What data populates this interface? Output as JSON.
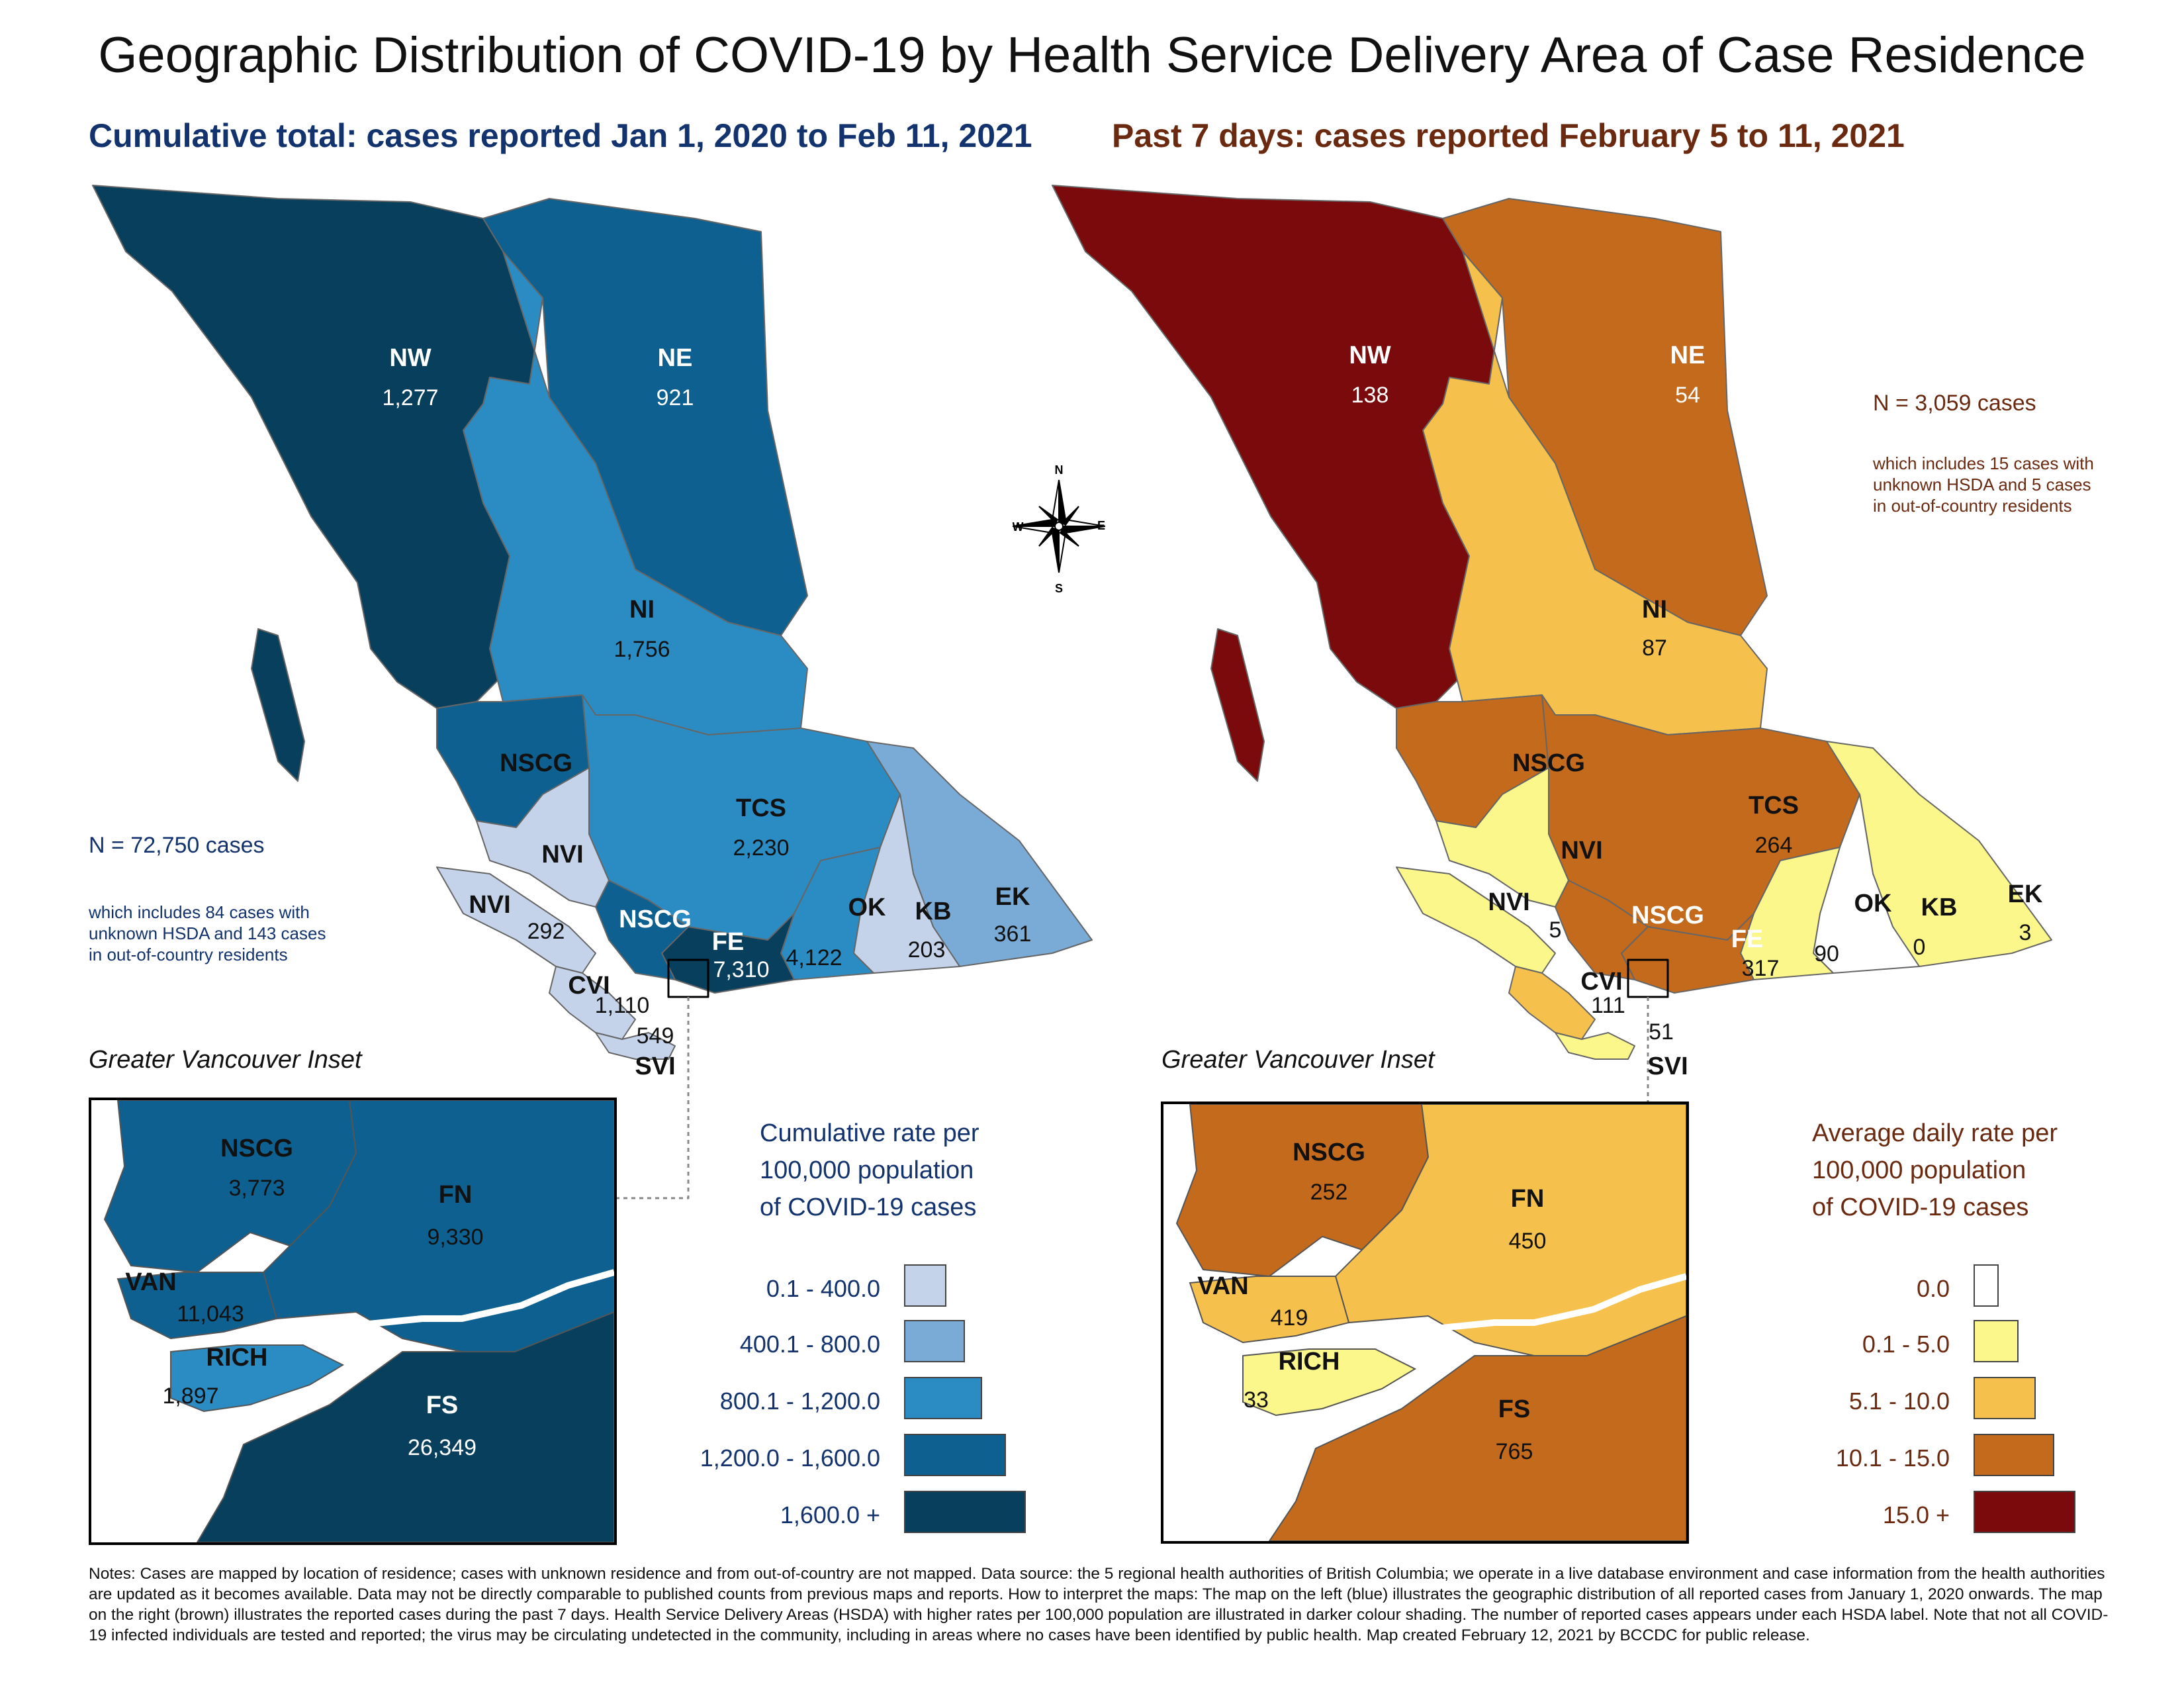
{
  "title": "Geographic Distribution of COVID-19 by Health Service Delivery Area of Case Residence",
  "left": {
    "subtitle": "Cumulative total: cases reported Jan 1, 2020 to Feb 11, 2021",
    "n_cases": "N = 72,750 cases",
    "note_lines": [
      "which includes 84 cases with",
      "unknown HSDA and 143 cases",
      "in out-of-country residents"
    ],
    "regions": {
      "NW": {
        "label": "NW",
        "value": "1,277"
      },
      "NE": {
        "label": "NE",
        "value": "921"
      },
      "NI": {
        "label": "NI",
        "value": "1,756"
      },
      "NSCG": {
        "label": "NSCG"
      },
      "TCS": {
        "label": "TCS",
        "value": "2,230"
      },
      "NVI": {
        "label": "NVI"
      },
      "NVI2": {
        "label": "NVI",
        "value": "292"
      },
      "NSCG2": {
        "label": "NSCG"
      },
      "FE": {
        "label": "FE",
        "value": "7,310"
      },
      "OK": {
        "label": "OK",
        "value": "4,122"
      },
      "KB": {
        "label": "KB",
        "value": "203"
      },
      "EK": {
        "label": "EK",
        "value": "361"
      },
      "CVI": {
        "label": "CVI",
        "value": "1,110"
      },
      "SVI": {
        "label": "SVI",
        "value": "549"
      }
    },
    "inset": {
      "title": "Greater Vancouver Inset",
      "NSCG": {
        "label": "NSCG",
        "value": "3,773"
      },
      "FN": {
        "label": "FN",
        "value": "9,330"
      },
      "VAN": {
        "label": "VAN",
        "value": "11,043"
      },
      "RICH": {
        "label": "RICH",
        "value": "1,897"
      },
      "FS": {
        "label": "FS",
        "value": "26,349"
      }
    },
    "legend": {
      "title_lines": [
        "Cumulative rate per",
        "100,000 population",
        "of COVID-19 cases"
      ],
      "items": [
        {
          "label": "0.1 - 400.0",
          "color": "#c5d3ea"
        },
        {
          "label": "400.1 - 800.0",
          "color": "#7aaad6"
        },
        {
          "label": "800.1 - 1,200.0",
          "color": "#2b8cc4"
        },
        {
          "label": "1,200.0 - 1,600.0",
          "color": "#0d6090"
        },
        {
          "label": "1,600.0 +",
          "color": "#083f5c"
        }
      ]
    }
  },
  "right": {
    "subtitle": "Past 7 days: cases reported February 5 to 11, 2021",
    "n_cases": "N = 3,059 cases",
    "note_lines": [
      "which includes 15 cases with",
      "unknown HSDA and 5 cases",
      "in out-of-country residents"
    ],
    "regions": {
      "NW": {
        "label": "NW",
        "value": "138"
      },
      "NE": {
        "label": "NE",
        "value": "54"
      },
      "NI": {
        "label": "NI",
        "value": "87"
      },
      "NSCG": {
        "label": "NSCG"
      },
      "TCS": {
        "label": "TCS",
        "value": "264"
      },
      "NVI": {
        "label": "NVI"
      },
      "NVI2": {
        "label": "NVI",
        "value": "5"
      },
      "NSCG2": {
        "label": "NSCG"
      },
      "FE": {
        "label": "FE",
        "value": "317"
      },
      "OK": {
        "label": "OK",
        "value": "90"
      },
      "KB": {
        "label": "KB",
        "value": "0"
      },
      "EK": {
        "label": "EK",
        "value": "3"
      },
      "CVI": {
        "label": "CVI",
        "value": "111"
      },
      "SVI": {
        "label": "SVI",
        "value": "51"
      }
    },
    "inset": {
      "title": "Greater Vancouver Inset",
      "NSCG": {
        "label": "NSCG",
        "value": "252"
      },
      "FN": {
        "label": "FN",
        "value": "450"
      },
      "VAN": {
        "label": "VAN",
        "value": "419"
      },
      "RICH": {
        "label": "RICH",
        "value": "33"
      },
      "FS": {
        "label": "FS",
        "value": "765"
      }
    },
    "legend": {
      "title_lines": [
        "Average daily rate per",
        "100,000 population",
        "of COVID-19 cases"
      ],
      "items": [
        {
          "label": "0.0",
          "color": "#ffffff"
        },
        {
          "label": "0.1 - 5.0",
          "color": "#fbf78a"
        },
        {
          "label": "5.1 - 10.0",
          "color": "#f5c04c"
        },
        {
          "label": "10.1 - 15.0",
          "color": "#c46a1c"
        },
        {
          "label": "15.0 +",
          "color": "#7a0a0c"
        }
      ]
    }
  },
  "compass": {
    "n": "N",
    "s": "S",
    "e": "E",
    "w": "W"
  },
  "notes": "Notes: Cases are mapped by location of residence; cases with unknown residence and from out-of-country are not mapped. Data source: the 5 regional health authorities of British Columbia; we operate in a live database environment and case information from the health authorities are updated as it becomes available. Data may not be directly comparable to published counts from previous maps and reports. How to interpret the maps: The map on the left (blue) illustrates the geographic distribution of all reported cases from January 1, 2020 onwards. The map on the right (brown) illustrates the reported cases during the past 7 days. Health Service Delivery Areas (HSDA) with higher rates per 100,000 population are illustrated in darker colour shading. The number of reported cases appears under each HSDA label. Note that not all COVID-19 infected individuals are tested and reported; the virus may be circulating undetected in the community, including in areas where no cases have been identified by public health. Map created February 12, 2021 by BCCDC for public release."
}
